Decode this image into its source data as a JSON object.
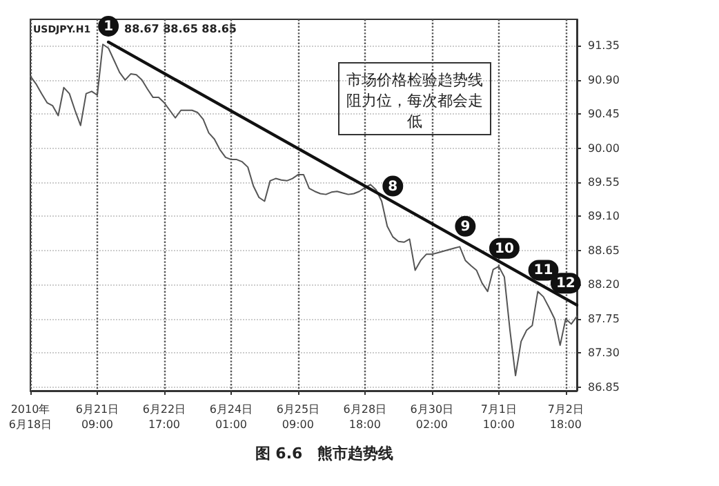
{
  "chart_data": {
    "type": "line",
    "title": "图 6.6　熊市趋势线",
    "annotations": [
      "USDJPY.H1",
      "88.67 88.65 88.65",
      "市场价格检验趋势线阻力位，每次都会走低",
      {
        "text": "1",
        "y": 91.4
      },
      {
        "text": "8",
        "y": 89.29
      },
      {
        "text": "9",
        "y": 88.76
      },
      {
        "text": "10",
        "y": 88.47
      },
      {
        "text": "11",
        "y": 88.18
      },
      {
        "text": "12",
        "y": 88.01
      }
    ],
    "categories": [
      "2010年\n6月18日",
      null,
      null,
      null,
      null,
      null,
      null,
      null,
      null,
      null,
      null,
      null,
      "6月21日\n09:00",
      null,
      null,
      null,
      null,
      null,
      null,
      null,
      null,
      null,
      null,
      null,
      "6月22日\n17:00",
      null,
      null,
      null,
      null,
      null,
      null,
      null,
      null,
      null,
      null,
      null,
      "6月24日\n01:00",
      null,
      null,
      null,
      null,
      null,
      null,
      null,
      null,
      null,
      null,
      null,
      "6月25日\n09:00",
      null,
      null,
      null,
      null,
      null,
      null,
      null,
      null,
      null,
      null,
      null,
      "6月28日\n18:00",
      null,
      null,
      null,
      null,
      null,
      null,
      null,
      null,
      null,
      null,
      null,
      "6月30日\n02:00",
      null,
      null,
      null,
      null,
      null,
      null,
      null,
      null,
      null,
      null,
      null,
      "7月1日\n10:00",
      null,
      null,
      null,
      null,
      null,
      null,
      null,
      null,
      null,
      null,
      null,
      "7月2日\n18:00",
      null,
      null
    ],
    "series": [
      {
        "color": "#555555",
        "values": [
          90.95,
          90.85,
          90.72,
          90.6,
          90.56,
          90.43,
          90.8,
          90.72,
          90.5,
          90.3,
          90.72,
          90.75,
          90.7,
          91.37,
          91.32,
          91.16,
          91.0,
          90.9,
          90.98,
          90.97,
          90.9,
          90.78,
          90.67,
          90.67,
          90.6,
          90.5,
          90.4,
          90.5,
          90.5,
          90.5,
          90.47,
          90.38,
          90.2,
          90.12,
          89.98,
          89.88,
          89.85,
          89.85,
          89.82,
          89.75,
          89.5,
          89.35,
          89.3,
          89.57,
          89.6,
          89.58,
          89.57,
          89.6,
          89.65,
          89.65,
          89.47,
          89.43,
          89.4,
          89.39,
          89.42,
          89.43,
          89.41,
          89.39,
          89.4,
          89.43,
          89.48,
          89.52,
          89.45,
          89.3,
          88.97,
          88.83,
          88.77,
          88.76,
          88.8,
          88.39,
          88.52,
          88.6,
          88.6,
          88.62,
          88.64,
          88.66,
          88.68,
          88.7,
          88.52,
          88.45,
          88.39,
          88.22,
          88.11,
          88.4,
          88.44,
          88.3,
          87.6,
          87.0,
          87.45,
          87.6,
          87.66,
          88.11,
          88.04,
          87.9,
          87.75,
          87.4,
          87.75,
          87.68,
          87.78
        ]
      },
      {
        "type": "line",
        "color": "#111111",
        "values": [
          null,
          null,
          null,
          null,
          null,
          null,
          null,
          null,
          null,
          null,
          null,
          null,
          null,
          null,
          91.4,
          null,
          null,
          null,
          null,
          null,
          null,
          null,
          null,
          null,
          null,
          null,
          null,
          null,
          null,
          null,
          null,
          null,
          null,
          null,
          null,
          null,
          null,
          null,
          null,
          null,
          null,
          null,
          null,
          null,
          null,
          null,
          null,
          null,
          null,
          null,
          null,
          null,
          null,
          null,
          null,
          null,
          null,
          null,
          null,
          null,
          null,
          null,
          null,
          null,
          null,
          null,
          null,
          null,
          null,
          null,
          null,
          null,
          null,
          null,
          null,
          null,
          null,
          null,
          null,
          null,
          null,
          null,
          null,
          null,
          null,
          null,
          null,
          null,
          null,
          null,
          null,
          null,
          null,
          null,
          null,
          null,
          null,
          null,
          87.93
        ]
      }
    ],
    "ylim": [
      86.8,
      91.7
    ],
    "yticks": [
      86.85,
      {
        "value": 87.3,
        "label": "87.30"
      },
      87.75,
      {
        "value": 88.2,
        "label": "88.20"
      },
      88.65,
      {
        "value": 89.1,
        "label": "89.10"
      },
      89.55,
      {
        "value": 90,
        "label": "90.00"
      },
      90.45,
      {
        "value": 90.9,
        "label": "90.90"
      },
      91.35
    ],
    "grid": true,
    "marker": "none",
    "line_style": "solid"
  }
}
